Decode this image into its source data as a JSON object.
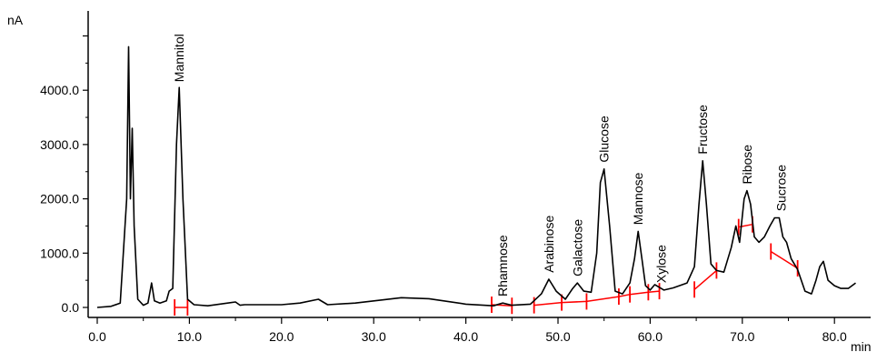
{
  "chart_data": {
    "type": "line",
    "title": "",
    "xlabel": "min",
    "ylabel": "nA",
    "xlim": [
      -2,
      85
    ],
    "ylim": [
      -100,
      5500
    ],
    "x_ticks": [
      0,
      10,
      20,
      30,
      40,
      50,
      60,
      70,
      80
    ],
    "x_tick_labels": [
      "0.0",
      "10.0",
      "20.0",
      "30.0",
      "40.0",
      "50.0",
      "60.0",
      "70.0",
      "80.0"
    ],
    "y_ticks": [
      0,
      1000,
      2000,
      3000,
      4000
    ],
    "y_tick_labels": [
      "0.0",
      "1000.0",
      "2000.0",
      "3000.0",
      "4000.0"
    ],
    "grid": false,
    "line_color": "#000000",
    "baseline_color": "#ff0000",
    "series": [
      {
        "x": [
          0.0,
          1.5,
          2.5,
          3.2,
          3.4,
          3.6,
          3.8,
          4.0,
          4.4,
          5.0,
          5.5,
          5.9,
          6.2,
          6.8,
          7.5,
          7.8,
          8.2,
          8.6,
          8.9,
          9.3,
          9.8,
          10.5,
          12.0,
          15.0,
          15.5,
          16.0,
          20.0,
          22.0,
          24.0,
          25.0,
          28.0,
          33.0,
          36.0,
          40.0,
          43.0,
          44.0,
          45.0,
          47.0,
          48.2,
          49.0,
          49.8,
          50.8,
          51.6,
          52.1,
          52.8,
          53.6,
          54.2,
          54.6,
          55.0,
          55.6,
          56.2,
          57.0,
          57.8,
          58.3,
          58.7,
          59.1,
          59.5,
          60.0,
          60.5,
          61.5,
          62.5,
          64.0,
          64.8,
          65.3,
          65.7,
          66.1,
          66.6,
          67.2,
          68.0,
          68.8,
          69.3,
          69.7,
          70.2,
          70.5,
          70.9,
          71.3,
          71.8,
          72.4,
          73.0,
          73.5,
          74.0,
          74.4,
          74.8,
          75.3,
          76.0,
          76.8,
          77.5,
          78.0,
          78.4,
          78.8,
          79.3,
          80.0,
          80.7,
          81.5,
          82.3
        ],
        "y": [
          0,
          20,
          80,
          2000,
          4800,
          2000,
          3300,
          1500,
          150,
          40,
          80,
          450,
          120,
          80,
          120,
          300,
          350,
          3000,
          4050,
          2000,
          150,
          50,
          30,
          100,
          40,
          50,
          50,
          80,
          150,
          50,
          80,
          180,
          160,
          60,
          30,
          80,
          40,
          60,
          250,
          520,
          300,
          150,
          350,
          450,
          300,
          280,
          1000,
          2300,
          2550,
          1500,
          300,
          250,
          450,
          900,
          1400,
          900,
          400,
          320,
          420,
          320,
          360,
          450,
          750,
          1900,
          2700,
          1900,
          800,
          680,
          650,
          1100,
          1500,
          1200,
          2000,
          2150,
          1900,
          1300,
          1200,
          1300,
          1500,
          1650,
          1650,
          1300,
          1200,
          900,
          700,
          300,
          250,
          500,
          750,
          850,
          500,
          400,
          350,
          350,
          450
        ]
      }
    ],
    "peaks": [
      {
        "label": "Mannitol",
        "x": 8.9,
        "y": 4050
      },
      {
        "label": "Rhamnose",
        "x": 44.0,
        "y": 100
      },
      {
        "label": "Arabinose",
        "x": 49.0,
        "y": 540
      },
      {
        "label": "Galactose",
        "x": 52.1,
        "y": 470
      },
      {
        "label": "Glucose",
        "x": 55.0,
        "y": 2570
      },
      {
        "label": "Mannose",
        "x": 58.7,
        "y": 1420
      },
      {
        "label": "Xylose",
        "x": 61.2,
        "y": 350
      },
      {
        "label": "Fructose",
        "x": 65.7,
        "y": 2720
      },
      {
        "label": "Ribose",
        "x": 70.5,
        "y": 2170
      },
      {
        "label": "Sucrose",
        "x": 74.2,
        "y": 1670
      }
    ],
    "baselines": [
      {
        "points": [
          [
            8.4,
            0
          ],
          [
            9.8,
            0
          ]
        ],
        "marks": [
          [
            8.4,
            0
          ],
          [
            9.8,
            0
          ]
        ]
      },
      {
        "points": [
          [
            42.8,
            50
          ],
          [
            45.0,
            30
          ]
        ],
        "marks": [
          [
            42.8,
            50
          ],
          [
            45.0,
            30
          ]
        ]
      },
      {
        "points": [
          [
            47.4,
            40
          ],
          [
            50.4,
            90
          ],
          [
            53.1,
            110
          ],
          [
            56.6,
            200
          ],
          [
            57.8,
            240
          ],
          [
            59.8,
            280
          ],
          [
            61.0,
            300
          ]
        ],
        "marks": [
          [
            47.4,
            40
          ],
          [
            50.4,
            90
          ],
          [
            53.1,
            110
          ],
          [
            56.6,
            200
          ],
          [
            57.8,
            240
          ],
          [
            59.8,
            280
          ],
          [
            61.0,
            300
          ]
        ]
      },
      {
        "points": [
          [
            64.8,
            330
          ],
          [
            67.2,
            680
          ]
        ],
        "marks": [
          [
            64.8,
            330
          ],
          [
            67.2,
            680
          ]
        ]
      },
      {
        "points": [
          [
            69.6,
            1480
          ],
          [
            71.1,
            1530
          ]
        ],
        "marks": [
          [
            69.6,
            1480
          ],
          [
            71.1,
            1530
          ]
        ]
      },
      {
        "points": [
          [
            73.1,
            1030
          ],
          [
            76.0,
            720
          ]
        ],
        "marks": [
          [
            73.1,
            1030
          ],
          [
            76.0,
            720
          ]
        ]
      }
    ]
  }
}
